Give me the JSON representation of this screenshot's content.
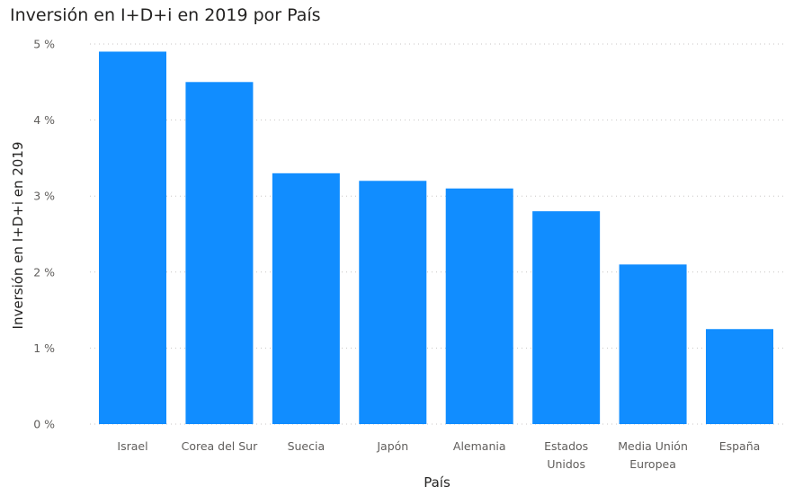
{
  "chart_data": {
    "type": "bar",
    "title": "Inversión en I+D+i en 2019 por País",
    "xlabel": "País",
    "ylabel": "Inversión en I+D+i en 2019",
    "categories": [
      "Israel",
      "Corea del Sur",
      "Suecia",
      "Japón",
      "Alemania",
      "Estados Unidos",
      "Media Unión Europea",
      "España"
    ],
    "category_lines": [
      [
        "Israel"
      ],
      [
        "Corea del Sur"
      ],
      [
        "Suecia"
      ],
      [
        "Japón"
      ],
      [
        "Alemania"
      ],
      [
        "Estados",
        "Unidos"
      ],
      [
        "Media Unión",
        "Europea"
      ],
      [
        "España"
      ]
    ],
    "values": [
      4.9,
      4.5,
      3.3,
      3.2,
      3.1,
      2.8,
      2.1,
      1.25
    ],
    "unit": "%",
    "ylim": [
      0,
      5
    ],
    "yticks": [
      0,
      1,
      2,
      3,
      4,
      5
    ],
    "ytick_labels": [
      "0 %",
      "1 %",
      "2 %",
      "3 %",
      "4 %",
      "5 %"
    ],
    "grid": true,
    "bar_color": "#118dff",
    "grid_color": "#c8c6c4"
  }
}
